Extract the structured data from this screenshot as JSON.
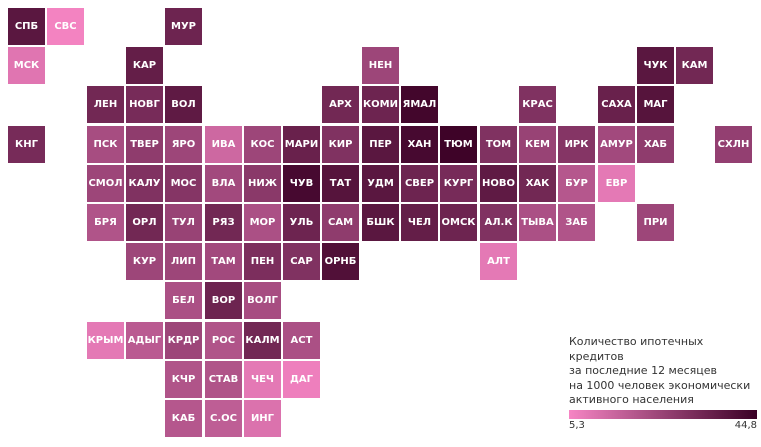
{
  "colors": {
    "low": "#f685c4",
    "high": "#3a0025"
  },
  "value_range": [
    5.3,
    44.8
  ],
  "legend": {
    "title": "Количество ипотечных кредитов\nза последние 12 месяцев\nна 1000 человек экономически\nактивного населения",
    "min_label": "5,3",
    "max_label": "44,8"
  },
  "regions": [
    {
      "label": "СПБ",
      "row": 0,
      "col": 0,
      "value": 38
    },
    {
      "label": "СВС",
      "row": 0,
      "col": 1,
      "value": 6
    },
    {
      "label": "МУР",
      "row": 0,
      "col": 4,
      "value": 34
    },
    {
      "label": "МСК",
      "row": 1,
      "col": 0,
      "value": 10
    },
    {
      "label": "КАР",
      "row": 1,
      "col": 3,
      "value": 36
    },
    {
      "label": "НЕН",
      "row": 1,
      "col": 9,
      "value": 24
    },
    {
      "label": "ЧУК",
      "row": 1,
      "col": 16,
      "value": 38
    },
    {
      "label": "КАМ",
      "row": 1,
      "col": 17,
      "value": 33
    },
    {
      "label": "ЛЕН",
      "row": 2,
      "col": 2,
      "value": 33
    },
    {
      "label": "НОВГ",
      "row": 2,
      "col": 3,
      "value": 32
    },
    {
      "label": "ВОЛ",
      "row": 2,
      "col": 4,
      "value": 37
    },
    {
      "label": "АРХ",
      "row": 2,
      "col": 8,
      "value": 33
    },
    {
      "label": "КОМИ",
      "row": 2,
      "col": 9,
      "value": 34
    },
    {
      "label": "ЯМАЛ",
      "row": 2,
      "col": 10,
      "value": 43
    },
    {
      "label": "КРАС",
      "row": 2,
      "col": 13,
      "value": 30
    },
    {
      "label": "САХА",
      "row": 2,
      "col": 15,
      "value": 35
    },
    {
      "label": "МАГ",
      "row": 2,
      "col": 16,
      "value": 39
    },
    {
      "label": "КНГ",
      "row": 3,
      "col": 0,
      "value": 32
    },
    {
      "label": "ПСК",
      "row": 3,
      "col": 2,
      "value": 22
    },
    {
      "label": "ТВЕР",
      "row": 3,
      "col": 3,
      "value": 27
    },
    {
      "label": "ЯРО",
      "row": 3,
      "col": 4,
      "value": 24
    },
    {
      "label": "ИВА",
      "row": 3,
      "col": 5,
      "value": 14
    },
    {
      "label": "КОС",
      "row": 3,
      "col": 6,
      "value": 24
    },
    {
      "label": "МАРИ",
      "row": 3,
      "col": 7,
      "value": 35
    },
    {
      "label": "КИР",
      "row": 3,
      "col": 8,
      "value": 30
    },
    {
      "label": "ПЕР",
      "row": 3,
      "col": 9,
      "value": 38
    },
    {
      "label": "ХАН",
      "row": 3,
      "col": 10,
      "value": 42
    },
    {
      "label": "ТЮМ",
      "row": 3,
      "col": 11,
      "value": 44
    },
    {
      "label": "ТОМ",
      "row": 3,
      "col": 12,
      "value": 30
    },
    {
      "label": "КЕМ",
      "row": 3,
      "col": 13,
      "value": 25
    },
    {
      "label": "ИРК",
      "row": 3,
      "col": 14,
      "value": 29
    },
    {
      "label": "АМУР",
      "row": 3,
      "col": 15,
      "value": 23
    },
    {
      "label": "ХАБ",
      "row": 3,
      "col": 16,
      "value": 27
    },
    {
      "label": "СХЛН",
      "row": 3,
      "col": 18,
      "value": 26
    },
    {
      "label": "СМОЛ",
      "row": 4,
      "col": 2,
      "value": 24
    },
    {
      "label": "КАЛУ",
      "row": 4,
      "col": 3,
      "value": 30
    },
    {
      "label": "МОС",
      "row": 4,
      "col": 4,
      "value": 29
    },
    {
      "label": "ВЛА",
      "row": 4,
      "col": 5,
      "value": 23
    },
    {
      "label": "НИЖ",
      "row": 4,
      "col": 6,
      "value": 28
    },
    {
      "label": "ЧУВ",
      "row": 4,
      "col": 7,
      "value": 42
    },
    {
      "label": "ТАТ",
      "row": 4,
      "col": 8,
      "value": 39
    },
    {
      "label": "УДМ",
      "row": 4,
      "col": 9,
      "value": 38
    },
    {
      "label": "СВЕР",
      "row": 4,
      "col": 10,
      "value": 34
    },
    {
      "label": "КУРГ",
      "row": 4,
      "col": 11,
      "value": 32
    },
    {
      "label": "НОВО",
      "row": 4,
      "col": 12,
      "value": 37
    },
    {
      "label": "ХАК",
      "row": 4,
      "col": 13,
      "value": 33
    },
    {
      "label": "БУР",
      "row": 4,
      "col": 14,
      "value": 19
    },
    {
      "label": "ЕВР",
      "row": 4,
      "col": 15,
      "value": 9
    },
    {
      "label": "БРЯ",
      "row": 5,
      "col": 2,
      "value": 20
    },
    {
      "label": "ОРЛ",
      "row": 5,
      "col": 3,
      "value": 33
    },
    {
      "label": "ТУЛ",
      "row": 5,
      "col": 4,
      "value": 25
    },
    {
      "label": "РЯЗ",
      "row": 5,
      "col": 5,
      "value": 33
    },
    {
      "label": "МОР",
      "row": 5,
      "col": 6,
      "value": 21
    },
    {
      "label": "УЛЬ",
      "row": 5,
      "col": 7,
      "value": 34
    },
    {
      "label": "САМ",
      "row": 5,
      "col": 8,
      "value": 27
    },
    {
      "label": "БШК",
      "row": 5,
      "col": 9,
      "value": 38
    },
    {
      "label": "ЧЕЛ",
      "row": 5,
      "col": 10,
      "value": 36
    },
    {
      "label": "ОМСК",
      "row": 5,
      "col": 11,
      "value": 34
    },
    {
      "label": "АЛ.К",
      "row": 5,
      "col": 12,
      "value": 30
    },
    {
      "label": "ТЫВА",
      "row": 5,
      "col": 13,
      "value": 21
    },
    {
      "label": "ЗАБ",
      "row": 5,
      "col": 14,
      "value": 20
    },
    {
      "label": "ПРИ",
      "row": 5,
      "col": 16,
      "value": 24
    },
    {
      "label": "КУР",
      "row": 6,
      "col": 3,
      "value": 24
    },
    {
      "label": "ЛИП",
      "row": 6,
      "col": 4,
      "value": 24
    },
    {
      "label": "ТАМ",
      "row": 6,
      "col": 5,
      "value": 23
    },
    {
      "label": "ПЕН",
      "row": 6,
      "col": 6,
      "value": 31
    },
    {
      "label": "САР",
      "row": 6,
      "col": 7,
      "value": 30
    },
    {
      "label": "ОРНБ",
      "row": 6,
      "col": 8,
      "value": 40
    },
    {
      "label": "АЛТ",
      "row": 6,
      "col": 12,
      "value": 9
    },
    {
      "label": "БЕЛ",
      "row": 7,
      "col": 4,
      "value": 21
    },
    {
      "label": "ВОР",
      "row": 7,
      "col": 5,
      "value": 34
    },
    {
      "label": "ВОЛГ",
      "row": 7,
      "col": 6,
      "value": 22
    },
    {
      "label": "КРЫМ",
      "row": 8,
      "col": 2,
      "value": 9
    },
    {
      "label": "АДЫГ",
      "row": 8,
      "col": 3,
      "value": 18
    },
    {
      "label": "КРДР",
      "row": 8,
      "col": 4,
      "value": 24
    },
    {
      "label": "РОС",
      "row": 8,
      "col": 5,
      "value": 20
    },
    {
      "label": "КАЛМ",
      "row": 8,
      "col": 6,
      "value": 33
    },
    {
      "label": "АСТ",
      "row": 8,
      "col": 7,
      "value": 21
    },
    {
      "label": "КЧР",
      "row": 9,
      "col": 4,
      "value": 20
    },
    {
      "label": "СТАВ",
      "row": 9,
      "col": 5,
      "value": 20
    },
    {
      "label": "ЧЕЧ",
      "row": 9,
      "col": 6,
      "value": 9
    },
    {
      "label": "ДАГ",
      "row": 9,
      "col": 7,
      "value": 7
    },
    {
      "label": "КАБ",
      "row": 10,
      "col": 4,
      "value": 19
    },
    {
      "label": "С.ОС",
      "row": 10,
      "col": 5,
      "value": 17
    },
    {
      "label": "ИНГ",
      "row": 10,
      "col": 6,
      "value": 11
    }
  ]
}
